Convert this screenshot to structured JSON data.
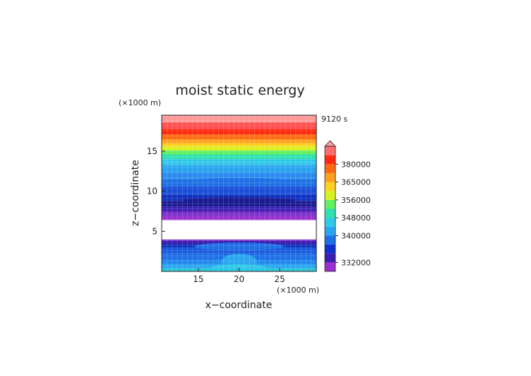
{
  "chart_data": {
    "type": "heatmap",
    "title": "moist static energy",
    "time_label": "9120 s",
    "xlabel": "x−coordinate",
    "ylabel": "z−coordinate",
    "x_unit": "(×1000 m)",
    "y_unit": "(×1000 m)",
    "xlim": [
      10.5,
      29.5
    ],
    "ylim": [
      0,
      19.5
    ],
    "x_ticks": [
      "15",
      "20",
      "25"
    ],
    "y_ticks": [
      "5",
      "10",
      "15"
    ],
    "colorbar_labels": [
      "332000",
      "340000",
      "348000",
      "356000",
      "365000",
      "380000"
    ],
    "colors": [
      "#9b2fd0",
      "#3a1fb0",
      "#1030d0",
      "#1f6fe6",
      "#2aa6f0",
      "#30c8e8",
      "#2fe0b0",
      "#60f060",
      "#d8f020",
      "#ffd020",
      "#ffa020",
      "#ff6a10",
      "#ff2a10",
      "#ff6e6e"
    ],
    "bands": [
      {
        "z0": 0.0,
        "z1": 0.4,
        "color": "#2fc8d8"
      },
      {
        "z0": 0.4,
        "z1": 0.9,
        "color": "#2aa6f0"
      },
      {
        "z0": 0.9,
        "z1": 1.5,
        "color": "#1f86ec"
      },
      {
        "z0": 1.5,
        "z1": 2.3,
        "color": "#1f6fe6"
      },
      {
        "z0": 2.3,
        "z1": 3.0,
        "color": "#1a58dc"
      },
      {
        "z0": 3.0,
        "z1": 3.4,
        "color": "#1030b8"
      },
      {
        "z0": 3.4,
        "z1": 3.8,
        "color": "#3a1fb0"
      },
      {
        "z0": 3.8,
        "z1": 4.0,
        "color": "#7a2cc8"
      },
      {
        "z0": 6.4,
        "z1": 6.9,
        "color": "#9b2fd0"
      },
      {
        "z0": 6.9,
        "z1": 7.5,
        "color": "#7a2cc8"
      },
      {
        "z0": 7.5,
        "z1": 8.1,
        "color": "#3a1fb0"
      },
      {
        "z0": 8.1,
        "z1": 8.8,
        "color": "#1a1a90"
      },
      {
        "z0": 8.8,
        "z1": 9.6,
        "color": "#1030c0"
      },
      {
        "z0": 9.6,
        "z1": 10.6,
        "color": "#1a50d8"
      },
      {
        "z0": 10.6,
        "z1": 11.5,
        "color": "#1f6fe6"
      },
      {
        "z0": 11.5,
        "z1": 12.4,
        "color": "#2a8cee"
      },
      {
        "z0": 12.4,
        "z1": 13.3,
        "color": "#2aa6f0"
      },
      {
        "z0": 13.3,
        "z1": 14.0,
        "color": "#30c8e8"
      },
      {
        "z0": 14.0,
        "z1": 14.6,
        "color": "#2fe0b0"
      },
      {
        "z0": 14.6,
        "z1": 15.1,
        "color": "#60f060"
      },
      {
        "z0": 15.1,
        "z1": 15.6,
        "color": "#d8f020"
      },
      {
        "z0": 15.6,
        "z1": 16.0,
        "color": "#ffd020"
      },
      {
        "z0": 16.0,
        "z1": 16.5,
        "color": "#ffa020"
      },
      {
        "z0": 16.5,
        "z1": 17.1,
        "color": "#ff6a10"
      },
      {
        "z0": 17.1,
        "z1": 17.8,
        "color": "#ff2a10"
      },
      {
        "z0": 17.8,
        "z1": 18.6,
        "color": "#ff5050"
      },
      {
        "z0": 18.6,
        "z1": 19.5,
        "color": "#ff9a9a"
      }
    ],
    "blobs": [
      {
        "x": 20,
        "z": 1.2,
        "rx": 2.2,
        "rz": 1.0,
        "color": "#2aa6f0"
      },
      {
        "x": 20,
        "z": 0.4,
        "rx": 3.5,
        "rz": 0.5,
        "color": "#30c8e8"
      },
      {
        "x": 20,
        "z": 3.1,
        "rx": 5.5,
        "rz": 0.5,
        "color": "#1f6fe6"
      },
      {
        "x": 20,
        "z": 11.3,
        "rx": 6.0,
        "rz": 0.35,
        "color": "#1f6fe6"
      },
      {
        "x": 20,
        "z": 8.9,
        "rx": 7.0,
        "rz": 0.35,
        "color": "#1a1a90"
      }
    ],
    "gap": {
      "z0": 4.0,
      "z1": 6.4
    },
    "grid": true
  }
}
